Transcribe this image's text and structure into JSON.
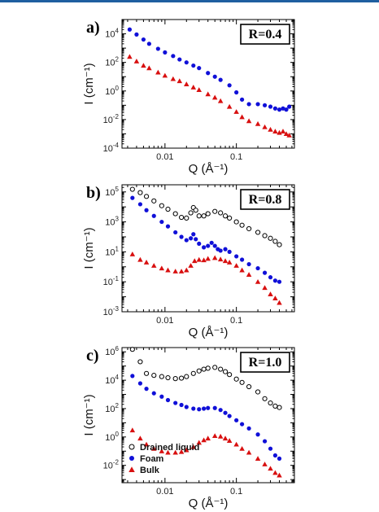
{
  "colors": {
    "drained": "#000000",
    "foam": "#1010d8",
    "bulk": "#d81010",
    "rule": "#1f5fa0"
  },
  "chart_data": [
    {
      "type": "scatter",
      "panel_label": "a)",
      "annotation": "R=0.4",
      "xlabel": "Q (Å⁻¹)",
      "ylabel": "I (cm⁻¹)",
      "xscale": "log",
      "yscale": "log",
      "xlim": [
        0.0025,
        0.65
      ],
      "ylim": [
        0.0001,
        100000
      ],
      "xticks": [
        {
          "v": 0.01,
          "label": "0.01"
        },
        {
          "v": 0.1,
          "label": "0.1"
        }
      ],
      "yticks": [
        {
          "v": 0.0001,
          "b": "10",
          "e": "-4"
        },
        {
          "v": 0.01,
          "b": "10",
          "e": "-2"
        },
        {
          "v": 1,
          "b": "10",
          "e": "0"
        },
        {
          "v": 100,
          "b": "10",
          "e": "2"
        },
        {
          "v": 10000,
          "b": "10",
          "e": "4"
        }
      ],
      "legend": null,
      "series": [
        {
          "name": "Foam",
          "marker": "circle",
          "color": "#1010d8",
          "x": [
            0.0032,
            0.004,
            0.005,
            0.006,
            0.008,
            0.01,
            0.013,
            0.016,
            0.02,
            0.025,
            0.03,
            0.04,
            0.05,
            0.06,
            0.08,
            0.1,
            0.12,
            0.15,
            0.2,
            0.25,
            0.3,
            0.35,
            0.4,
            0.45,
            0.5,
            0.55
          ],
          "y": [
            20000,
            9000,
            4000,
            2000,
            900,
            500,
            280,
            160,
            100,
            60,
            40,
            18,
            10,
            6,
            2.5,
            0.8,
            0.25,
            0.12,
            0.12,
            0.1,
            0.08,
            0.06,
            0.05,
            0.06,
            0.05,
            0.08
          ]
        },
        {
          "name": "Bulk",
          "marker": "triangle",
          "color": "#d81010",
          "x": [
            0.0032,
            0.004,
            0.005,
            0.006,
            0.008,
            0.01,
            0.013,
            0.016,
            0.02,
            0.025,
            0.03,
            0.04,
            0.05,
            0.06,
            0.08,
            0.1,
            0.12,
            0.15,
            0.2,
            0.25,
            0.3,
            0.35,
            0.4,
            0.45,
            0.5,
            0.55
          ],
          "y": [
            250,
            120,
            60,
            40,
            20,
            12,
            7,
            5,
            3,
            1.8,
            1.2,
            0.6,
            0.35,
            0.2,
            0.08,
            0.035,
            0.015,
            0.008,
            0.005,
            0.003,
            0.002,
            0.0015,
            0.0012,
            0.0015,
            0.001,
            0.0008
          ]
        }
      ]
    },
    {
      "type": "scatter",
      "panel_label": "b)",
      "annotation": "R=0.8",
      "xlabel": "Q (Å⁻¹)",
      "ylabel": "I (cm⁻¹)",
      "xscale": "log",
      "yscale": "log",
      "xlim": [
        0.0025,
        0.65
      ],
      "ylim": [
        0.001,
        300000
      ],
      "xticks": [
        {
          "v": 0.01,
          "label": "0.01"
        },
        {
          "v": 0.1,
          "label": "0.1"
        }
      ],
      "yticks": [
        {
          "v": 0.001,
          "b": "10",
          "e": "-3"
        },
        {
          "v": 0.1,
          "b": "10",
          "e": "-1"
        },
        {
          "v": 10,
          "b": "10",
          "e": "1"
        },
        {
          "v": 1000,
          "b": "10",
          "e": "3"
        },
        {
          "v": 100000,
          "b": "10",
          "e": "5"
        }
      ],
      "legend": null,
      "series": [
        {
          "name": "Drained liquid",
          "marker": "open-circle",
          "color": "#000000",
          "x": [
            0.0035,
            0.0045,
            0.0055,
            0.007,
            0.009,
            0.011,
            0.014,
            0.017,
            0.02,
            0.023,
            0.025,
            0.027,
            0.03,
            0.035,
            0.04,
            0.05,
            0.06,
            0.07,
            0.08,
            0.1,
            0.12,
            0.15,
            0.2,
            0.25,
            0.3,
            0.35,
            0.4
          ],
          "y": [
            150000,
            90000,
            50000,
            25000,
            12000,
            7000,
            3500,
            2000,
            1800,
            4000,
            9000,
            6000,
            2500,
            2500,
            3500,
            5000,
            4000,
            2500,
            1800,
            1000,
            600,
            350,
            200,
            120,
            80,
            50,
            30
          ]
        },
        {
          "name": "Foam",
          "marker": "circle",
          "color": "#1010d8",
          "x": [
            0.0035,
            0.0045,
            0.0055,
            0.007,
            0.009,
            0.011,
            0.014,
            0.017,
            0.02,
            0.023,
            0.025,
            0.027,
            0.03,
            0.035,
            0.04,
            0.045,
            0.05,
            0.055,
            0.06,
            0.07,
            0.08,
            0.1,
            0.12,
            0.15,
            0.2,
            0.25,
            0.3,
            0.35,
            0.4
          ],
          "y": [
            40000,
            15000,
            6000,
            2500,
            1000,
            500,
            200,
            100,
            60,
            80,
            150,
            70,
            35,
            20,
            25,
            40,
            25,
            15,
            12,
            15,
            10,
            5,
            3,
            1.5,
            0.8,
            0.4,
            0.2,
            0.12,
            0.1
          ]
        },
        {
          "name": "Bulk",
          "marker": "triangle",
          "color": "#d81010",
          "x": [
            0.0035,
            0.0045,
            0.0055,
            0.007,
            0.009,
            0.011,
            0.014,
            0.017,
            0.02,
            0.023,
            0.026,
            0.03,
            0.035,
            0.04,
            0.05,
            0.06,
            0.07,
            0.08,
            0.1,
            0.12,
            0.15,
            0.2,
            0.25,
            0.3,
            0.35,
            0.4
          ],
          "y": [
            7,
            3,
            2,
            1.2,
            0.8,
            0.6,
            0.5,
            0.5,
            0.6,
            1.2,
            2.5,
            3,
            2.8,
            3.5,
            4,
            3.2,
            2.5,
            2,
            1.2,
            0.6,
            0.3,
            0.1,
            0.04,
            0.015,
            0.008,
            0.004
          ]
        }
      ]
    },
    {
      "type": "scatter",
      "panel_label": "c)",
      "annotation": "R=1.0",
      "xlabel": "Q (Å⁻¹)",
      "ylabel": "I (cm⁻¹)",
      "xscale": "log",
      "yscale": "log",
      "xlim": [
        0.0025,
        0.65
      ],
      "ylim": [
        0.0006,
        2000000
      ],
      "xticks": [
        {
          "v": 0.01,
          "label": "0.01"
        },
        {
          "v": 0.1,
          "label": "0.1"
        }
      ],
      "yticks": [
        {
          "v": 0.01,
          "b": "10",
          "e": "-2"
        },
        {
          "v": 1,
          "b": "10",
          "e": "0"
        },
        {
          "v": 100,
          "b": "10",
          "e": "2"
        },
        {
          "v": 10000,
          "b": "10",
          "e": "4"
        },
        {
          "v": 1000000,
          "b": "10",
          "e": "6"
        }
      ],
      "legend": {
        "placement": "bottom-left",
        "entries": [
          {
            "label": "Drained liquid",
            "marker": "open-circle",
            "color": "#000000"
          },
          {
            "label": "Foam",
            "marker": "circle",
            "color": "#1010d8"
          },
          {
            "label": "Bulk",
            "marker": "triangle",
            "color": "#d81010"
          }
        ]
      },
      "series": [
        {
          "name": "Drained liquid",
          "marker": "open-circle",
          "color": "#000000",
          "x": [
            0.0035,
            0.0045,
            0.0055,
            0.007,
            0.009,
            0.011,
            0.014,
            0.017,
            0.02,
            0.025,
            0.03,
            0.035,
            0.04,
            0.05,
            0.06,
            0.07,
            0.08,
            0.1,
            0.12,
            0.15,
            0.2,
            0.25,
            0.3,
            0.35,
            0.4
          ],
          "y": [
            1500000,
            200000,
            30000,
            22000,
            18000,
            15000,
            13000,
            14000,
            18000,
            30000,
            45000,
            60000,
            70000,
            80000,
            60000,
            40000,
            25000,
            12000,
            7000,
            3500,
            1500,
            500,
            250,
            150,
            120
          ]
        },
        {
          "name": "Foam",
          "marker": "circle",
          "color": "#1010d8",
          "x": [
            0.0035,
            0.0045,
            0.0055,
            0.007,
            0.009,
            0.011,
            0.014,
            0.017,
            0.02,
            0.025,
            0.03,
            0.035,
            0.04,
            0.05,
            0.06,
            0.07,
            0.08,
            0.1,
            0.12,
            0.15,
            0.2,
            0.25,
            0.3,
            0.35,
            0.4
          ],
          "y": [
            20000,
            6000,
            2500,
            1200,
            700,
            400,
            250,
            180,
            130,
            100,
            90,
            100,
            110,
            110,
            80,
            50,
            30,
            15,
            8,
            4,
            1.5,
            0.5,
            0.15,
            0.05,
            0.03
          ]
        },
        {
          "name": "Bulk",
          "marker": "triangle",
          "color": "#d81010",
          "x": [
            0.0035,
            0.0045,
            0.0055,
            0.007,
            0.009,
            0.011,
            0.014,
            0.017,
            0.02,
            0.025,
            0.03,
            0.035,
            0.04,
            0.05,
            0.06,
            0.07,
            0.08,
            0.1,
            0.12,
            0.15,
            0.2,
            0.25,
            0.3,
            0.35,
            0.4
          ],
          "y": [
            3,
            0.8,
            0.3,
            0.15,
            0.1,
            0.08,
            0.08,
            0.09,
            0.12,
            0.2,
            0.4,
            0.6,
            0.8,
            1.2,
            1.1,
            0.8,
            0.55,
            0.3,
            0.15,
            0.08,
            0.03,
            0.012,
            0.006,
            0.003,
            0.002
          ]
        }
      ]
    }
  ]
}
